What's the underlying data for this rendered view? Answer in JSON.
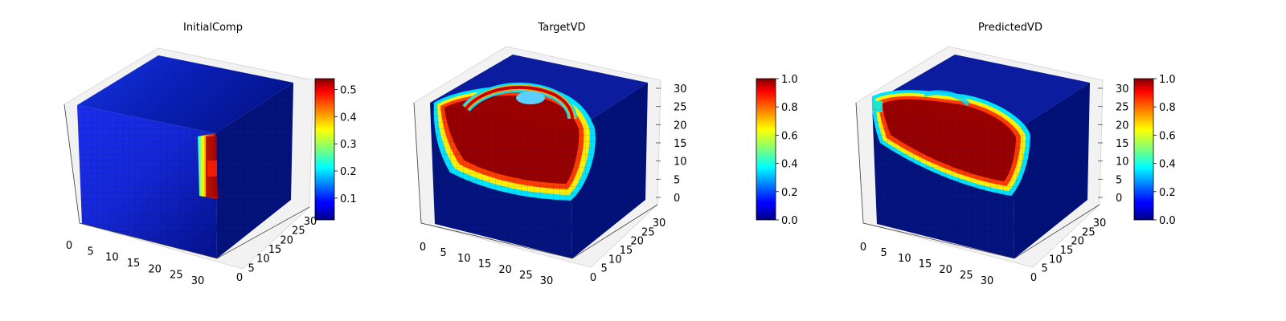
{
  "figure": {
    "panels": [
      {
        "title": "InitialComp",
        "colorbar": {
          "min": 0.02,
          "max": 0.54,
          "ticks": [
            0.1,
            0.2,
            0.3,
            0.4,
            0.5
          ],
          "tick_labels": [
            "0.1",
            "0.2",
            "0.3",
            "0.4",
            "0.5"
          ]
        },
        "z_tick_labels": []
      },
      {
        "title": "TargetVD",
        "colorbar": {
          "min": 0.0,
          "max": 1.0,
          "ticks": [
            0.0,
            0.2,
            0.4,
            0.6,
            0.8,
            1.0
          ],
          "tick_labels": [
            "0.0",
            "0.2",
            "0.4",
            "0.6",
            "0.8",
            "1.0"
          ]
        },
        "z_tick_labels": [
          "0",
          "5",
          "10",
          "15",
          "20",
          "25",
          "30"
        ]
      },
      {
        "title": "PredictedVD",
        "colorbar": {
          "min": 0.0,
          "max": 1.0,
          "ticks": [
            0.0,
            0.2,
            0.4,
            0.6,
            0.8,
            1.0
          ],
          "tick_labels": [
            "0.0",
            "0.2",
            "0.4",
            "0.6",
            "0.8",
            "1.0"
          ]
        },
        "z_tick_labels": [
          "0",
          "5",
          "10",
          "15",
          "20",
          "25",
          "30"
        ]
      }
    ],
    "x_tick_labels": [
      "0",
      "5",
      "10",
      "15",
      "20",
      "25",
      "30"
    ],
    "y_tick_labels": [
      "0",
      "5",
      "10",
      "15",
      "20",
      "25",
      "30"
    ],
    "colormap": "jet"
  },
  "chart_data": [
    {
      "type": "heatmap",
      "title": "InitialComp",
      "x_range": [
        0,
        32
      ],
      "y_range": [
        0,
        32
      ],
      "z_range": [
        0,
        32
      ],
      "value_range": [
        0.02,
        0.54
      ],
      "colormap": "jet",
      "legend": "colorbar-right",
      "grid": true
    },
    {
      "type": "heatmap",
      "title": "TargetVD",
      "x_range": [
        0,
        32
      ],
      "y_range": [
        0,
        32
      ],
      "z_range": [
        0,
        32
      ],
      "value_range": [
        0.0,
        1.0
      ],
      "colormap": "jet",
      "legend": "colorbar-right",
      "grid": true
    },
    {
      "type": "heatmap",
      "title": "PredictedVD",
      "x_range": [
        0,
        32
      ],
      "y_range": [
        0,
        32
      ],
      "z_range": [
        0,
        32
      ],
      "value_range": [
        0.0,
        1.0
      ],
      "colormap": "jet",
      "legend": "colorbar-right",
      "grid": true
    }
  ]
}
